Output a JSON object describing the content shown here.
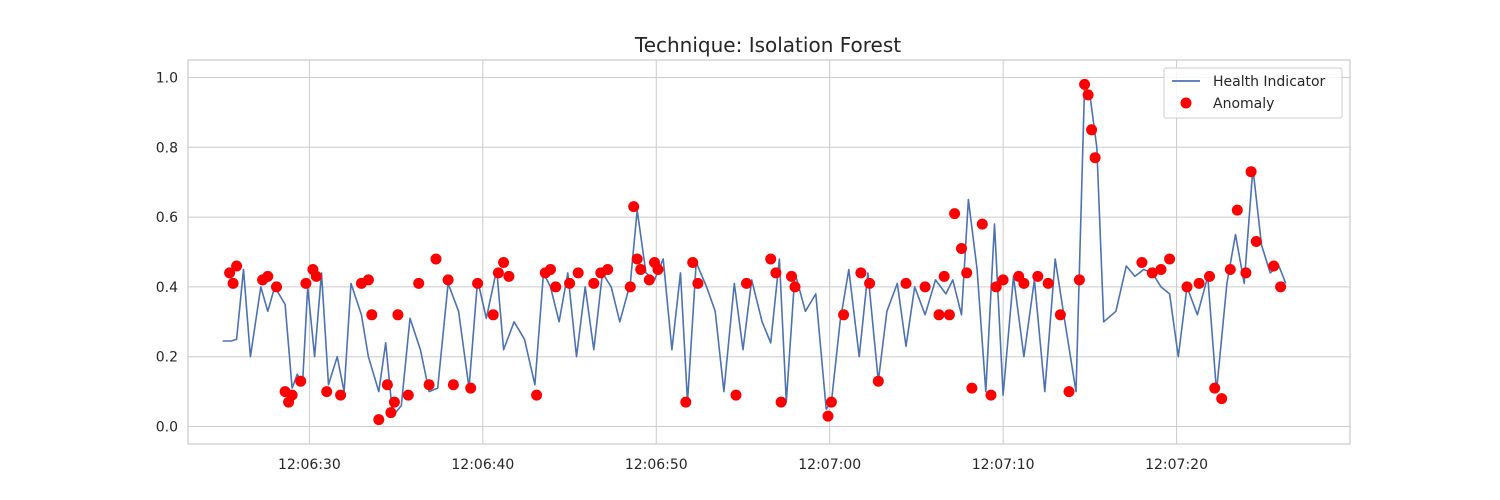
{
  "chart_data": {
    "type": "line",
    "title": "Technique: Isolation Forest",
    "xlabel": "",
    "ylabel": "",
    "x_range": [
      "12:06:23",
      "12:07:30"
    ],
    "ylim": [
      -0.05,
      1.05
    ],
    "grid": true,
    "legend_placement": "top-right",
    "x_ticks": [
      "12:06:30",
      "12:06:40",
      "12:06:50",
      "12:07:00",
      "12:07:10",
      "12:07:20"
    ],
    "y_ticks": [
      "0.0",
      "0.2",
      "0.4",
      "0.6",
      "0.8",
      "1.0"
    ],
    "series": [
      {
        "name": "Health Indicator",
        "kind": "line",
        "color": "#4c72b0",
        "x": [
          "12:06:25.0",
          "12:06:25.5",
          "12:06:25.8",
          "12:06:26.2",
          "12:06:26.6",
          "12:06:27.2",
          "12:06:27.6",
          "12:06:28.0",
          "12:06:28.6",
          "12:06:29.0",
          "12:06:29.3",
          "12:06:29.6",
          "12:06:29.9",
          "12:06:30.3",
          "12:06:30.7",
          "12:06:31.1",
          "12:06:31.6",
          "12:06:32.0",
          "12:06:32.4",
          "12:06:33.0",
          "12:06:33.4",
          "12:06:34.0",
          "12:06:34.4",
          "12:06:34.8",
          "12:06:35.3",
          "12:06:35.8",
          "12:06:36.4",
          "12:06:36.9",
          "12:06:37.4",
          "12:06:38.0",
          "12:06:38.6",
          "12:06:39.2",
          "12:06:39.7",
          "12:06:40.2",
          "12:06:40.8",
          "12:06:41.2",
          "12:06:41.8",
          "12:06:42.4",
          "12:06:43.0",
          "12:06:43.5",
          "12:06:43.9",
          "12:06:44.4",
          "12:06:44.9",
          "12:06:45.4",
          "12:06:45.9",
          "12:06:46.4",
          "12:06:46.9",
          "12:06:47.4",
          "12:06:47.9",
          "12:06:48.5",
          "12:06:48.9",
          "12:06:49.4",
          "12:06:49.9",
          "12:06:50.4",
          "12:06:50.9",
          "12:06:51.4",
          "12:06:51.8",
          "12:06:52.3",
          "12:06:52.9",
          "12:06:53.4",
          "12:06:53.9",
          "12:06:54.5",
          "12:06:55.0",
          "12:06:55.5",
          "12:06:56.1",
          "12:06:56.6",
          "12:06:57.1",
          "12:06:57.5",
          "12:06:58.0",
          "12:06:58.6",
          "12:06:59.2",
          "12:06:59.8",
          "12:07:00.1",
          "12:07:00.6",
          "12:07:01.1",
          "12:07:01.7",
          "12:07:02.2",
          "12:07:02.8",
          "12:07:03.3",
          "12:07:03.9",
          "12:07:04.4",
          "12:07:04.9",
          "12:07:05.5",
          "12:07:06.1",
          "12:07:06.7",
          "12:07:07.1",
          "12:07:07.6",
          "12:07:08.0",
          "12:07:08.5",
          "12:07:09.0",
          "12:07:09.5",
          "12:07:10.0",
          "12:07:10.6",
          "12:07:11.2",
          "12:07:11.8",
          "12:07:12.4",
          "12:07:13.0",
          "12:07:13.5",
          "12:07:14.2",
          "12:07:14.7",
          "12:07:15.0",
          "12:07:15.4",
          "12:07:15.8",
          "12:07:16.5",
          "12:07:17.1",
          "12:07:17.6",
          "12:07:18.1",
          "12:07:18.6",
          "12:07:19.1",
          "12:07:19.6",
          "12:07:20.1",
          "12:07:20.6",
          "12:07:21.2",
          "12:07:21.8",
          "12:07:22.3",
          "12:07:22.9",
          "12:07:23.4",
          "12:07:23.9",
          "12:07:24.4",
          "12:07:24.9",
          "12:07:25.4",
          "12:07:25.9",
          "12:07:26.3"
        ],
        "values": [
          0.245,
          0.245,
          0.25,
          0.45,
          0.2,
          0.4,
          0.33,
          0.4,
          0.35,
          0.11,
          0.15,
          0.12,
          0.4,
          0.2,
          0.44,
          0.12,
          0.2,
          0.1,
          0.41,
          0.32,
          0.2,
          0.1,
          0.24,
          0.03,
          0.06,
          0.31,
          0.22,
          0.1,
          0.11,
          0.41,
          0.33,
          0.11,
          0.42,
          0.31,
          0.45,
          0.22,
          0.3,
          0.25,
          0.12,
          0.44,
          0.4,
          0.3,
          0.44,
          0.2,
          0.4,
          0.22,
          0.44,
          0.4,
          0.3,
          0.41,
          0.62,
          0.44,
          0.42,
          0.48,
          0.22,
          0.44,
          0.07,
          0.47,
          0.4,
          0.33,
          0.1,
          0.41,
          0.22,
          0.42,
          0.3,
          0.24,
          0.48,
          0.07,
          0.44,
          0.33,
          0.38,
          0.05,
          0.07,
          0.3,
          0.45,
          0.2,
          0.44,
          0.13,
          0.33,
          0.41,
          0.23,
          0.4,
          0.32,
          0.42,
          0.38,
          0.42,
          0.32,
          0.65,
          0.45,
          0.1,
          0.58,
          0.09,
          0.43,
          0.2,
          0.42,
          0.1,
          0.48,
          0.32,
          0.1,
          0.98,
          0.95,
          0.8,
          0.3,
          0.33,
          0.46,
          0.43,
          0.45,
          0.44,
          0.4,
          0.38,
          0.2,
          0.4,
          0.32,
          0.43,
          0.1,
          0.41,
          0.55,
          0.41,
          0.74,
          0.52,
          0.44,
          0.46,
          0.41
        ]
      },
      {
        "name": "Anomaly",
        "kind": "scatter",
        "color": "#ff0000",
        "x": [
          "12:06:25.4",
          "12:06:25.6",
          "12:06:25.8",
          "12:06:27.3",
          "12:06:27.6",
          "12:06:28.1",
          "12:06:28.6",
          "12:06:28.8",
          "12:06:29.0",
          "12:06:29.5",
          "12:06:29.8",
          "12:06:30.2",
          "12:06:30.4",
          "12:06:31.0",
          "12:06:31.8",
          "12:06:33.0",
          "12:06:33.4",
          "12:06:33.6",
          "12:06:34.0",
          "12:06:34.5",
          "12:06:34.7",
          "12:06:34.9",
          "12:06:35.1",
          "12:06:35.7",
          "12:06:36.3",
          "12:06:36.9",
          "12:06:37.3",
          "12:06:38.0",
          "12:06:38.3",
          "12:06:39.3",
          "12:06:39.7",
          "12:06:40.6",
          "12:06:40.9",
          "12:06:41.2",
          "12:06:41.5",
          "12:06:43.1",
          "12:06:43.6",
          "12:06:43.9",
          "12:06:44.2",
          "12:06:45.0",
          "12:06:45.5",
          "12:06:46.4",
          "12:06:46.8",
          "12:06:47.2",
          "12:06:48.5",
          "12:06:48.7",
          "12:06:48.9",
          "12:06:49.1",
          "12:06:49.6",
          "12:06:49.9",
          "12:06:50.1",
          "12:06:51.7",
          "12:06:52.1",
          "12:06:52.4",
          "12:06:54.6",
          "12:06:55.2",
          "12:06:56.6",
          "12:06:56.9",
          "12:06:57.2",
          "12:06:57.8",
          "12:06:58.0",
          "12:06:59.9",
          "12:07:00.1",
          "12:07:00.8",
          "12:07:01.8",
          "12:07:02.3",
          "12:07:02.8",
          "12:07:04.4",
          "12:07:05.5",
          "12:07:06.3",
          "12:07:06.6",
          "12:07:06.9",
          "12:07:07.2",
          "12:07:07.6",
          "12:07:07.9",
          "12:07:08.2",
          "12:07:08.8",
          "12:07:09.3",
          "12:07:09.6",
          "12:07:10.0",
          "12:07:10.9",
          "12:07:11.2",
          "12:07:12.0",
          "12:07:12.6",
          "12:07:13.3",
          "12:07:13.8",
          "12:07:14.4",
          "12:07:14.7",
          "12:07:14.9",
          "12:07:15.1",
          "12:07:15.3",
          "12:07:18.0",
          "12:07:18.6",
          "12:07:19.1",
          "12:07:19.6",
          "12:07:20.6",
          "12:07:21.3",
          "12:07:21.9",
          "12:07:22.2",
          "12:07:22.6",
          "12:07:23.1",
          "12:07:23.5",
          "12:07:24.0",
          "12:07:24.3",
          "12:07:24.6",
          "12:07:25.6",
          "12:07:26.0"
        ],
        "values": [
          0.44,
          0.41,
          0.46,
          0.42,
          0.43,
          0.4,
          0.1,
          0.07,
          0.09,
          0.13,
          0.41,
          0.45,
          0.43,
          0.1,
          0.09,
          0.41,
          0.42,
          0.32,
          0.02,
          0.12,
          0.04,
          0.07,
          0.32,
          0.09,
          0.41,
          0.12,
          0.48,
          0.42,
          0.12,
          0.11,
          0.41,
          0.32,
          0.44,
          0.47,
          0.43,
          0.09,
          0.44,
          0.45,
          0.4,
          0.41,
          0.44,
          0.41,
          0.44,
          0.45,
          0.4,
          0.63,
          0.48,
          0.45,
          0.42,
          0.47,
          0.45,
          0.07,
          0.47,
          0.41,
          0.09,
          0.41,
          0.48,
          0.44,
          0.07,
          0.43,
          0.4,
          0.03,
          0.07,
          0.32,
          0.44,
          0.41,
          0.13,
          0.41,
          0.4,
          0.32,
          0.43,
          0.32,
          0.61,
          0.51,
          0.44,
          0.11,
          0.58,
          0.09,
          0.4,
          0.42,
          0.43,
          0.41,
          0.43,
          0.41,
          0.32,
          0.1,
          0.42,
          0.98,
          0.95,
          0.85,
          0.77,
          0.47,
          0.44,
          0.45,
          0.48,
          0.4,
          0.41,
          0.43,
          0.11,
          0.08,
          0.45,
          0.62,
          0.44,
          0.73,
          0.53,
          0.46,
          0.4
        ]
      }
    ]
  }
}
